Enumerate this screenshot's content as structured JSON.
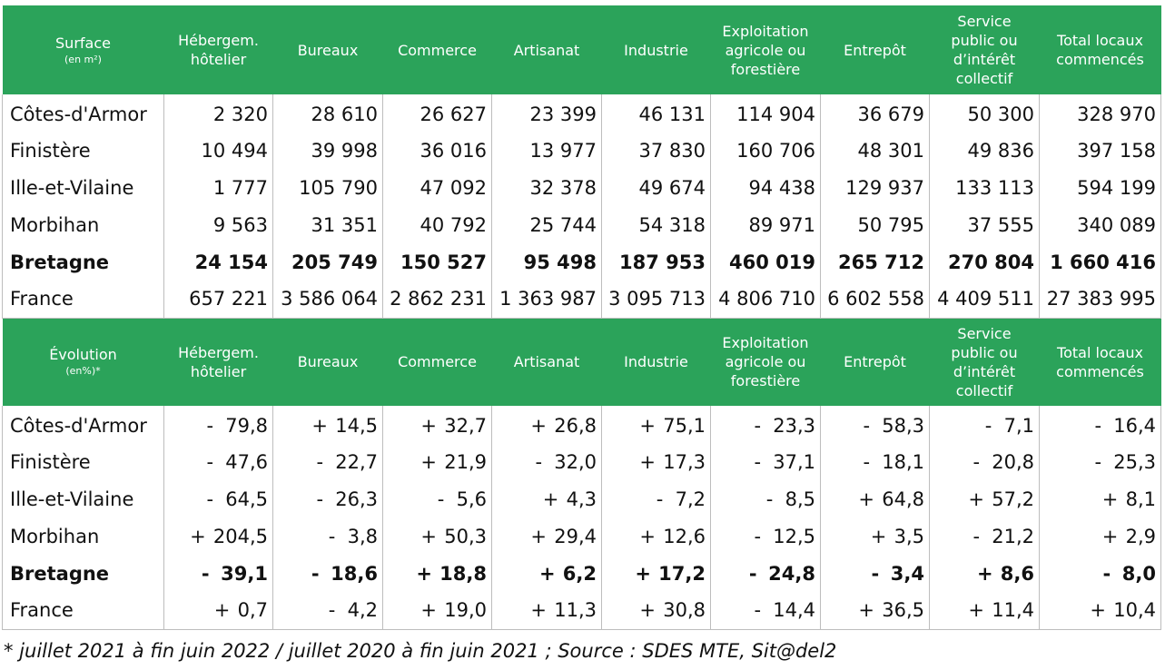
{
  "columns": [
    "Hébergem. hôtelier",
    "Bureaux",
    "Commerce",
    "Artisanat",
    "Industrie",
    "Exploitation agricole ou forestière",
    "Entrepôt",
    "Service public ou d’intérêt collectif",
    "Total locaux commencés"
  ],
  "columns_lines": [
    [
      "Hébergem.",
      "hôtelier"
    ],
    [
      "Bureaux"
    ],
    [
      "Commerce"
    ],
    [
      "Artisanat"
    ],
    [
      "Industrie"
    ],
    [
      "Exploitation",
      "agricole ou",
      "forestière"
    ],
    [
      "Entrepôt"
    ],
    [
      "Service",
      "public ou",
      "d’intérêt",
      "collectif"
    ],
    [
      "Total locaux",
      "commencés"
    ]
  ],
  "surface": {
    "title": "Surface",
    "unit": "(en m²)",
    "rows": [
      {
        "name": "Côtes-d'Armor",
        "bold": false,
        "values": [
          "2 320",
          "28 610",
          "26 627",
          "23 399",
          "46 131",
          "114 904",
          "36 679",
          "50 300",
          "328 970"
        ]
      },
      {
        "name": "Finistère",
        "bold": false,
        "values": [
          "10 494",
          "39 998",
          "36 016",
          "13 977",
          "37 830",
          "160 706",
          "48 301",
          "49 836",
          "397 158"
        ]
      },
      {
        "name": "Ille-et-Vilaine",
        "bold": false,
        "values": [
          "1 777",
          "105 790",
          "47 092",
          "32 378",
          "49 674",
          "94 438",
          "129 937",
          "133 113",
          "594 199"
        ]
      },
      {
        "name": "Morbihan",
        "bold": false,
        "values": [
          "9 563",
          "31 351",
          "40 792",
          "25 744",
          "54 318",
          "89 971",
          "50 795",
          "37 555",
          "340 089"
        ]
      },
      {
        "name": "Bretagne",
        "bold": true,
        "values": [
          "24 154",
          "205 749",
          "150 527",
          "95 498",
          "187 953",
          "460 019",
          "265 712",
          "270 804",
          "1 660 416"
        ]
      },
      {
        "name": "France",
        "bold": false,
        "values": [
          "657 221",
          "3 586 064",
          "2 862 231",
          "1 363 987",
          "3 095 713",
          "4 806 710",
          "6 602 558",
          "4 409 511",
          "27 383 995"
        ]
      }
    ]
  },
  "evolution": {
    "title": "Évolution",
    "unit": "(en%)*",
    "rows": [
      {
        "name": "Côtes-d'Armor",
        "bold": false,
        "values": [
          [
            "-",
            "79,8"
          ],
          [
            "+",
            "14,5"
          ],
          [
            "+",
            "32,7"
          ],
          [
            "+",
            "26,8"
          ],
          [
            "+",
            "75,1"
          ],
          [
            "-",
            "23,3"
          ],
          [
            "-",
            "58,3"
          ],
          [
            "-",
            "7,1"
          ],
          [
            "-",
            "16,4"
          ]
        ]
      },
      {
        "name": "Finistère",
        "bold": false,
        "values": [
          [
            "-",
            "47,6"
          ],
          [
            "-",
            "22,7"
          ],
          [
            "+",
            "21,9"
          ],
          [
            "-",
            "32,0"
          ],
          [
            "+",
            "17,3"
          ],
          [
            "-",
            "37,1"
          ],
          [
            "-",
            "18,1"
          ],
          [
            "-",
            "20,8"
          ],
          [
            "-",
            "25,3"
          ]
        ]
      },
      {
        "name": "Ille-et-Vilaine",
        "bold": false,
        "values": [
          [
            "-",
            "64,5"
          ],
          [
            "-",
            "26,3"
          ],
          [
            "-",
            "5,6"
          ],
          [
            "+",
            "4,3"
          ],
          [
            "-",
            "7,2"
          ],
          [
            "-",
            "8,5"
          ],
          [
            "+",
            "64,8"
          ],
          [
            "+",
            "57,2"
          ],
          [
            "+",
            "8,1"
          ]
        ]
      },
      {
        "name": "Morbihan",
        "bold": false,
        "values": [
          [
            "+",
            "204,5"
          ],
          [
            "-",
            "3,8"
          ],
          [
            "+",
            "50,3"
          ],
          [
            "+",
            "29,4"
          ],
          [
            "+",
            "12,6"
          ],
          [
            "-",
            "12,5"
          ],
          [
            "+",
            "3,5"
          ],
          [
            "-",
            "21,2"
          ],
          [
            "+",
            "2,9"
          ]
        ]
      },
      {
        "name": "Bretagne",
        "bold": true,
        "values": [
          [
            "-",
            "39,1"
          ],
          [
            "-",
            "18,6"
          ],
          [
            "+",
            "18,8"
          ],
          [
            "+",
            "6,2"
          ],
          [
            "+",
            "17,2"
          ],
          [
            "-",
            "24,8"
          ],
          [
            "-",
            "3,4"
          ],
          [
            "+",
            "8,6"
          ],
          [
            "-",
            "8,0"
          ]
        ]
      },
      {
        "name": "France",
        "bold": false,
        "values": [
          [
            "+",
            "0,7"
          ],
          [
            "-",
            "4,2"
          ],
          [
            "+",
            "19,0"
          ],
          [
            "+",
            "11,3"
          ],
          [
            "+",
            "30,8"
          ],
          [
            "-",
            "14,4"
          ],
          [
            "+",
            "36,5"
          ],
          [
            "+",
            "11,4"
          ],
          [
            "+",
            "10,4"
          ]
        ]
      }
    ]
  },
  "footnote": "* juillet 2021 à fin juin 2022 / juillet 2020 à fin juin 2021 ; Source : SDES MTE, Sit@del2",
  "colors": {
    "header_bg": "#2ba35a",
    "header_text": "#ffffff",
    "grid": "#bdbdbd"
  }
}
